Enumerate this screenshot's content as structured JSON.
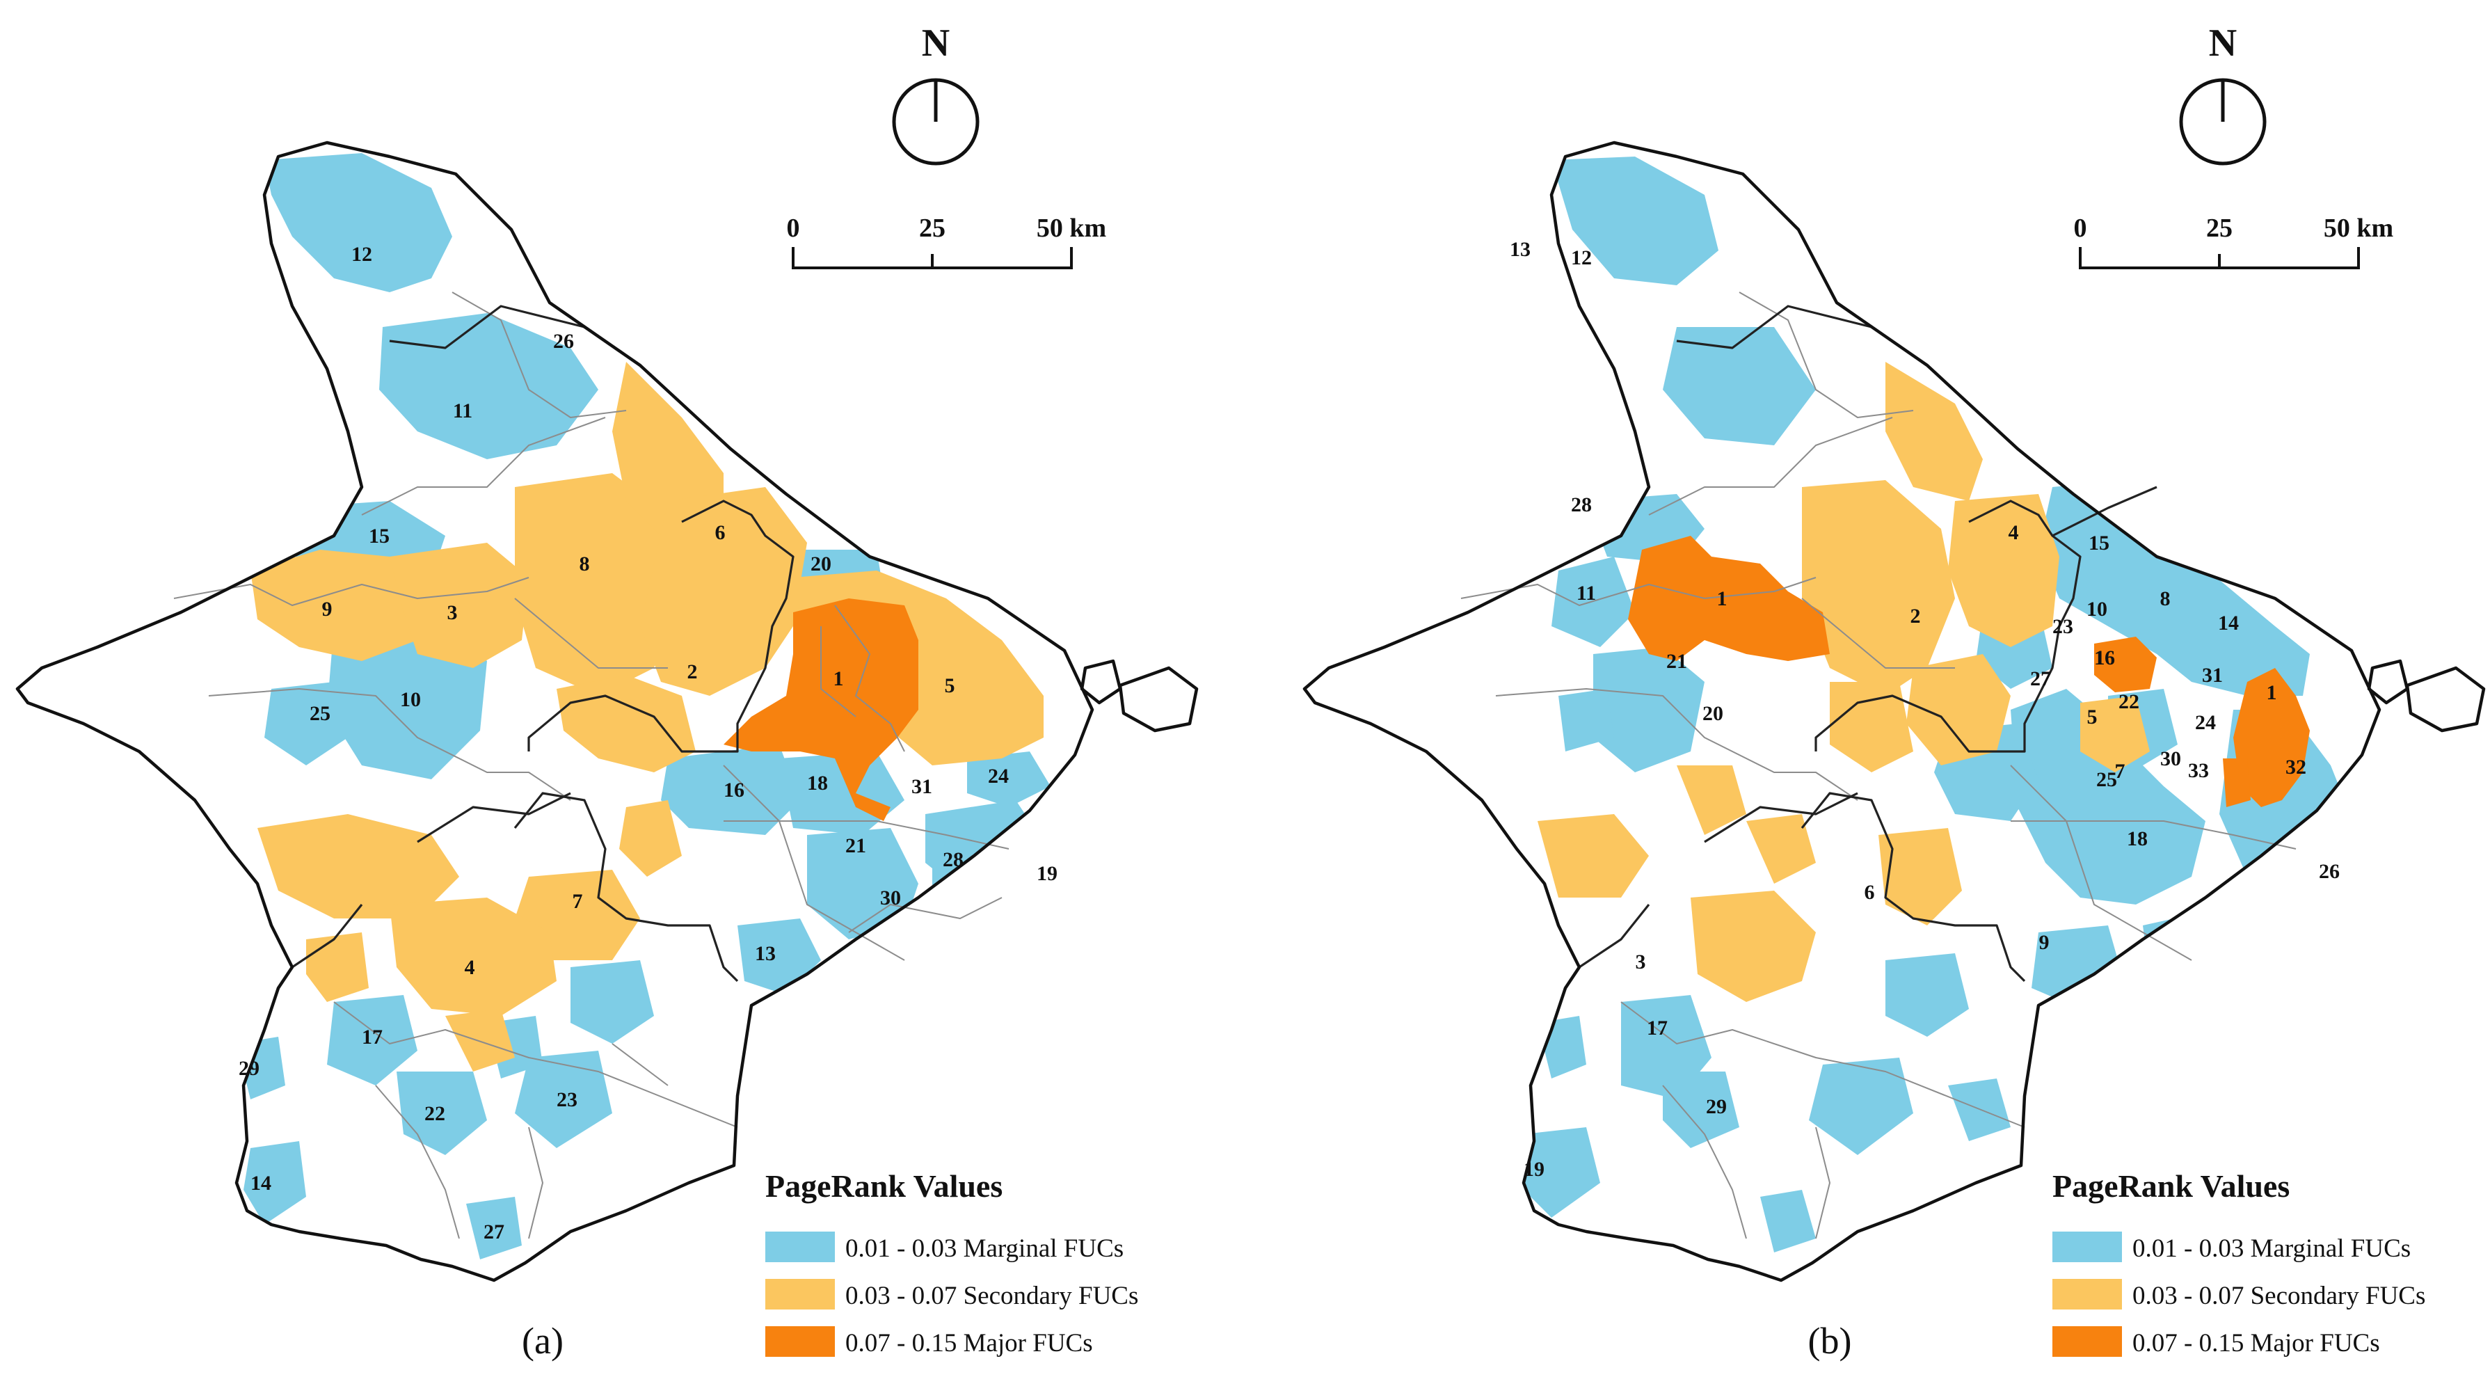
{
  "colors": {
    "marginal": "#7ecde6",
    "secondary": "#fbc65f",
    "major": "#f7820f",
    "outline": "#111111"
  },
  "north_label": "N",
  "scale": {
    "ticks": [
      "0",
      "25",
      "50 km"
    ]
  },
  "legend": {
    "title": "PageRank Values",
    "classes": [
      {
        "key": "marginal",
        "label": "0.01 - 0.03 Marginal FUCs"
      },
      {
        "key": "secondary",
        "label": "0.03 - 0.07 Secondary FUCs"
      },
      {
        "key": "major",
        "label": "0.07 - 0.15 Major FUCs"
      }
    ]
  },
  "maps": [
    {
      "caption": "(a)",
      "centers": [
        {
          "id": "1",
          "cls": "major"
        },
        {
          "id": "2",
          "cls": "secondary"
        },
        {
          "id": "3",
          "cls": "secondary"
        },
        {
          "id": "4",
          "cls": "secondary"
        },
        {
          "id": "5",
          "cls": "secondary"
        },
        {
          "id": "6",
          "cls": "secondary"
        },
        {
          "id": "7",
          "cls": "secondary"
        },
        {
          "id": "8",
          "cls": "secondary"
        },
        {
          "id": "9",
          "cls": "secondary"
        },
        {
          "id": "10",
          "cls": "marginal"
        },
        {
          "id": "11",
          "cls": "marginal"
        },
        {
          "id": "12",
          "cls": "marginal"
        },
        {
          "id": "13",
          "cls": "marginal"
        },
        {
          "id": "14",
          "cls": "marginal"
        },
        {
          "id": "15",
          "cls": "marginal"
        },
        {
          "id": "16",
          "cls": "marginal"
        },
        {
          "id": "17",
          "cls": "marginal"
        },
        {
          "id": "18",
          "cls": "marginal"
        },
        {
          "id": "19",
          "cls": "marginal"
        },
        {
          "id": "20",
          "cls": "marginal"
        },
        {
          "id": "21",
          "cls": "marginal"
        },
        {
          "id": "22",
          "cls": "marginal"
        },
        {
          "id": "23",
          "cls": "marginal"
        },
        {
          "id": "24",
          "cls": "marginal"
        },
        {
          "id": "25",
          "cls": "marginal"
        },
        {
          "id": "26",
          "cls": "marginal"
        },
        {
          "id": "27",
          "cls": "marginal"
        },
        {
          "id": "28",
          "cls": "marginal"
        },
        {
          "id": "29",
          "cls": "marginal"
        },
        {
          "id": "30",
          "cls": "marginal"
        },
        {
          "id": "31",
          "cls": "major"
        }
      ]
    },
    {
      "caption": "(b)",
      "centers": [
        {
          "id": "1",
          "cls": "major"
        },
        {
          "id": "1",
          "cls": "major"
        },
        {
          "id": "1",
          "cls": "major"
        },
        {
          "id": "2",
          "cls": "secondary"
        },
        {
          "id": "3",
          "cls": "secondary"
        },
        {
          "id": "4",
          "cls": "secondary"
        },
        {
          "id": "5",
          "cls": "secondary"
        },
        {
          "id": "6",
          "cls": "secondary"
        },
        {
          "id": "7",
          "cls": "marginal"
        },
        {
          "id": "8",
          "cls": "marginal"
        },
        {
          "id": "9",
          "cls": "marginal"
        },
        {
          "id": "10",
          "cls": "marginal"
        },
        {
          "id": "11",
          "cls": "marginal"
        },
        {
          "id": "12",
          "cls": "marginal"
        },
        {
          "id": "13",
          "cls": "marginal"
        },
        {
          "id": "14",
          "cls": "marginal"
        },
        {
          "id": "15",
          "cls": "marginal"
        },
        {
          "id": "16",
          "cls": "marginal"
        },
        {
          "id": "17",
          "cls": "marginal"
        },
        {
          "id": "18",
          "cls": "marginal"
        },
        {
          "id": "19",
          "cls": "marginal"
        },
        {
          "id": "20",
          "cls": "marginal"
        },
        {
          "id": "21",
          "cls": "marginal"
        },
        {
          "id": "22",
          "cls": "marginal"
        },
        {
          "id": "23",
          "cls": "marginal"
        },
        {
          "id": "24",
          "cls": "marginal"
        },
        {
          "id": "25",
          "cls": "marginal"
        },
        {
          "id": "26",
          "cls": "marginal"
        },
        {
          "id": "27",
          "cls": "marginal"
        },
        {
          "id": "28",
          "cls": "marginal"
        },
        {
          "id": "29",
          "cls": "marginal"
        },
        {
          "id": "30",
          "cls": "marginal"
        },
        {
          "id": "31",
          "cls": "marginal"
        },
        {
          "id": "32",
          "cls": "major"
        },
        {
          "id": "33",
          "cls": "marginal"
        }
      ]
    }
  ]
}
